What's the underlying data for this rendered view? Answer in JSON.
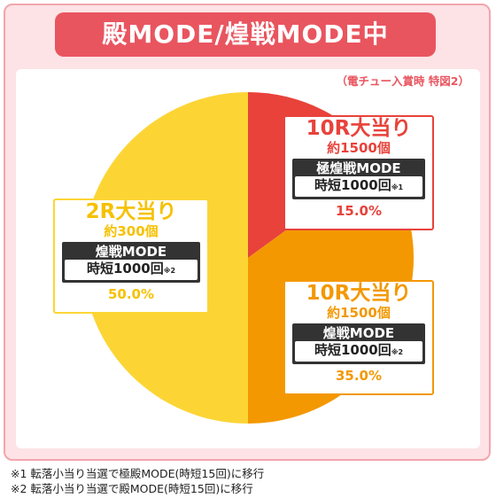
{
  "title": "殿MODE/煌戦MODE中",
  "source_note": "（電チュー入賞時 特図2）",
  "colors": {
    "frame": "#fde3e6",
    "title_bg": "#e9555f"
  },
  "chart_data": {
    "type": "pie",
    "slices": [
      {
        "label": "10R大当り",
        "rounds_note": "約1500個",
        "mode": "極煌戦MODE",
        "limit": "時短1000回",
        "footnote_mark": "※1",
        "value": 15.0,
        "value_label": "15.0%",
        "color": "#e8423b"
      },
      {
        "label": "10R大当り",
        "rounds_note": "約1500個",
        "mode": "煌戦MODE",
        "limit": "時短1000回",
        "footnote_mark": "※2",
        "value": 35.0,
        "value_label": "35.0%",
        "color": "#f39800"
      },
      {
        "label": "2R大当り",
        "rounds_note": "約300個",
        "mode": "煌戦MODE",
        "limit": "時短1000回",
        "footnote_mark": "※2",
        "value": 50.0,
        "value_label": "50.0%",
        "color": "#fcd535"
      }
    ]
  },
  "footnotes": [
    "※1 転落小当り当選で極殿MODE(時短15回)に移行",
    "※2 転落小当り当選で殿MODE(時短15回)に移行"
  ]
}
